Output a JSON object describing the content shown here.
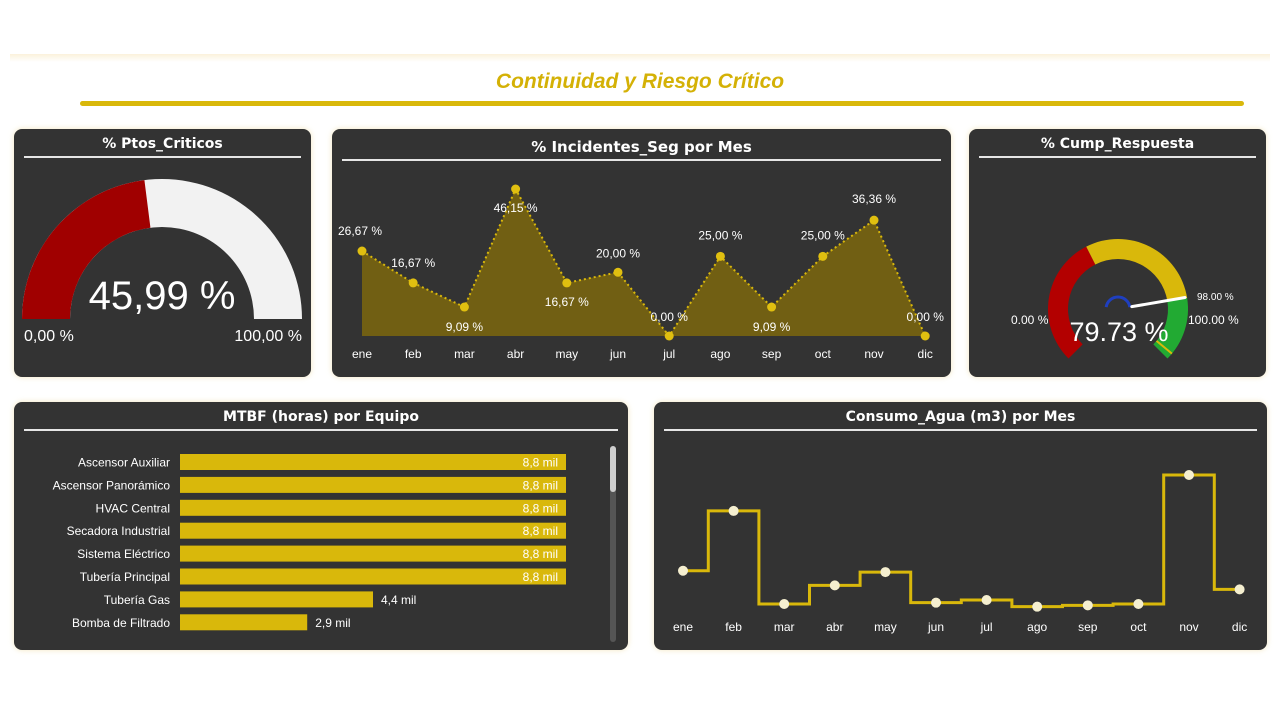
{
  "page": {
    "title": "Continuidad y Riesgo Crítico"
  },
  "colors": {
    "accent": "#d9b80b",
    "panel": "#333333",
    "red": "#a00000",
    "green": "#22aa33",
    "needle_hub": "#1f3fbf"
  },
  "charts": {
    "ptos_criticos": {
      "title": "% Ptos_Criticos",
      "value_label": "45,99 %",
      "min_label": "0,00 %",
      "max_label": "100,00 %",
      "chart_data": {
        "type": "gauge",
        "value": 45.99,
        "min": 0,
        "max": 100
      }
    },
    "incidentes": {
      "title": "% Incidentes_Seg por Mes",
      "chart_data": {
        "type": "area",
        "categories": [
          "ene",
          "feb",
          "mar",
          "abr",
          "may",
          "jun",
          "jul",
          "ago",
          "sep",
          "oct",
          "nov",
          "dic"
        ],
        "values": [
          26.67,
          16.67,
          9.09,
          46.15,
          16.67,
          20.0,
          0.0,
          25.0,
          9.09,
          25.0,
          36.36,
          0.0
        ],
        "labels": [
          "26,67 %",
          "16,67 %",
          "9,09 %",
          "46,15 %",
          "16,67 %",
          "20,00 %",
          "0,00 %",
          "25,00 %",
          "9,09 %",
          "25,00 %",
          "36,36 %",
          "0,00 %"
        ],
        "ylim": [
          0,
          46.15
        ]
      }
    },
    "cump_respuesta": {
      "title": "% Cump_Respuesta",
      "value_label": "79.73 %",
      "min_label": "0.00 %",
      "max_label": "100.00 %",
      "target_label": "98.00 %",
      "chart_data": {
        "type": "gauge",
        "value": 79.73,
        "min": 0,
        "max": 100,
        "target": 98,
        "bands": [
          {
            "from": 0,
            "to": 40,
            "color": "#b30000"
          },
          {
            "from": 40,
            "to": 80,
            "color": "#d9b80b"
          },
          {
            "from": 80,
            "to": 100,
            "color": "#22aa33"
          }
        ]
      }
    },
    "mtbf": {
      "title": "MTBF (horas) por Equipo",
      "chart_data": {
        "type": "bar",
        "orientation": "horizontal",
        "categories": [
          "Ascensor Auxiliar",
          "Ascensor Panorámico",
          "HVAC Central",
          "Secadora Industrial",
          "Sistema Eléctrico",
          "Tubería Principal",
          "Tubería Gas",
          "Bomba de Filtrado"
        ],
        "values": [
          8800,
          8800,
          8800,
          8800,
          8800,
          8800,
          4400,
          2900
        ],
        "labels": [
          "8,8 mil",
          "8,8 mil",
          "8,8 mil",
          "8,8 mil",
          "8,8 mil",
          "8,8 mil",
          "4,4 mil",
          "2,9 mil"
        ],
        "xlim": [
          0,
          8800
        ]
      }
    },
    "agua": {
      "title": "Consumo_Agua (m3) por Mes",
      "chart_data": {
        "type": "line",
        "step": true,
        "categories": [
          "ene",
          "feb",
          "mar",
          "abr",
          "may",
          "jun",
          "jul",
          "ago",
          "sep",
          "oct",
          "nov",
          "dic"
        ],
        "values": [
          28,
          73,
          3,
          17,
          27,
          4,
          6,
          1,
          2,
          3,
          100,
          14
        ],
        "ylim": [
          0,
          100
        ]
      }
    }
  }
}
